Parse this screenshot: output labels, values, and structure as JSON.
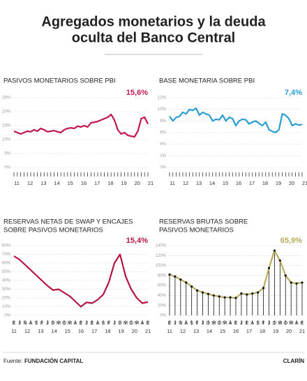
{
  "header": {
    "title": [
      "Agregados monetarios y la deuda",
      "oculta del Banco Central"
    ]
  },
  "footer": {
    "source_label": "Fuente:",
    "source": "FUNDACIÓN CAPITAL",
    "brand": "CLARÍN"
  },
  "chart_data": [
    {
      "type": "line",
      "title": "PASIVOS MONETARIOS SOBRE PBI",
      "color": "#c2174b",
      "categories": [
        "11",
        null,
        null,
        null,
        "12",
        null,
        null,
        null,
        "13",
        null,
        null,
        null,
        "14",
        null,
        null,
        null,
        "15",
        null,
        null,
        null,
        "16",
        null,
        null,
        null,
        "17",
        null,
        null,
        null,
        "18",
        null,
        null,
        null,
        "19",
        null,
        null,
        null,
        "20",
        null,
        null,
        null,
        "21"
      ],
      "values": [
        13,
        12.5,
        12,
        12.5,
        13,
        12.8,
        13.5,
        13,
        14,
        13.5,
        12.8,
        13,
        13.2,
        12.8,
        12.5,
        13.5,
        14,
        14.2,
        14,
        14.8,
        14.5,
        15,
        14.5,
        16,
        16.2,
        16.5,
        17,
        17.5,
        18,
        19,
        17,
        13.5,
        12,
        12.5,
        11.5,
        11.2,
        11,
        13,
        17.5,
        18,
        15.6
      ],
      "value_labels": {
        "40": "15,6%"
      },
      "ylim": [
        0,
        25
      ],
      "yticks": [
        {
          "value": 0,
          "label": "0%"
        },
        {
          "value": 5,
          "label": "5%"
        },
        {
          "value": 10,
          "label": "10%"
        },
        {
          "value": 15,
          "label": "15%"
        },
        {
          "value": 20,
          "label": "20%"
        },
        {
          "value": 25,
          "label": "25%"
        }
      ],
      "grid": true
    },
    {
      "type": "line",
      "title": "BASE MONETARIA SOBRE PBI",
      "color": "#2a9dd1",
      "categories": [
        "11",
        null,
        null,
        null,
        "12",
        null,
        null,
        null,
        "13",
        null,
        null,
        null,
        "14",
        null,
        null,
        null,
        "15",
        null,
        null,
        null,
        "16",
        null,
        null,
        null,
        "17",
        null,
        null,
        null,
        "18",
        null,
        null,
        null,
        "19",
        null,
        null,
        null,
        "20",
        null,
        null,
        null,
        "21"
      ],
      "values": [
        8.8,
        8,
        8.6,
        8.8,
        9.5,
        9.2,
        10,
        9.8,
        10.2,
        9,
        9.5,
        9.2,
        9,
        8,
        8.3,
        8.2,
        9,
        8,
        8.6,
        8.4,
        7.2,
        8,
        8.3,
        8.2,
        7.5,
        7.8,
        8,
        7.6,
        7.2,
        7.8,
        6.5,
        6.2,
        6,
        6.5,
        9.2,
        9,
        8.4,
        7.2,
        7.5,
        7.3,
        7.4
      ],
      "value_labels": {
        "40": "7,4%"
      },
      "ylim": [
        0,
        12
      ],
      "yticks": [
        {
          "value": 0,
          "label": "0%"
        },
        {
          "value": 2,
          "label": "2%"
        },
        {
          "value": 4,
          "label": "4%"
        },
        {
          "value": 6,
          "label": "6%"
        },
        {
          "value": 8,
          "label": "8%"
        },
        {
          "value": 10,
          "label": "10%"
        },
        {
          "value": 12,
          "label": "12%"
        }
      ],
      "grid": true
    },
    {
      "type": "line",
      "title": [
        "RESERVAS NETAS DE SWAP Y ENCAJES",
        "SOBRE PASIVOS MONETARIOS"
      ],
      "color": "#b5123f",
      "categories": [
        "E",
        "J",
        "N",
        "A",
        "S",
        "F",
        "J",
        "D",
        "M",
        "O",
        "M",
        "A",
        "E",
        "J",
        "E",
        "A",
        "S",
        "F",
        "J",
        "D",
        "M",
        "O",
        "M",
        "A",
        "E"
      ],
      "x_groups": [
        "11",
        "12",
        "13",
        "14",
        "15",
        "16",
        "17",
        "18",
        "19",
        "20",
        "21"
      ],
      "values": [
        68,
        64,
        58,
        52,
        46,
        40,
        34,
        29,
        30,
        26,
        22,
        16,
        10,
        15,
        14,
        18,
        24,
        38,
        60,
        70,
        45,
        30,
        20,
        14,
        15.4
      ],
      "value_labels": {
        "24": "15,4%"
      },
      "ylim": [
        0,
        80
      ],
      "yticks": [
        {
          "value": 0,
          "label": "0%"
        },
        {
          "value": 10,
          "label": "10%"
        },
        {
          "value": 20,
          "label": "20%"
        },
        {
          "value": 30,
          "label": "30%"
        },
        {
          "value": 40,
          "label": "40%"
        },
        {
          "value": 50,
          "label": "50%"
        },
        {
          "value": 60,
          "label": "60%"
        },
        {
          "value": 70,
          "label": "70%"
        },
        {
          "value": 80,
          "label": "80%"
        }
      ],
      "grid": true
    },
    {
      "type": "stem-line",
      "title": [
        "RESERVAS BRUTAS SOBRE",
        "PASIVOS MONETARIOS"
      ],
      "color": "#b8ab5a",
      "marker_color": "#111111",
      "categories": [
        "E",
        "J",
        "N",
        "A",
        "S",
        "F",
        "J",
        "D",
        "M",
        "O",
        "M",
        "A",
        "E",
        "J",
        "E",
        "A",
        "S",
        "F",
        "J",
        "D",
        "M",
        "O",
        "M",
        "A",
        "E"
      ],
      "x_groups": [
        "11",
        "12",
        "13",
        "14",
        "15",
        "16",
        "17",
        "18",
        "19",
        "20",
        "21"
      ],
      "values": [
        82,
        78,
        72,
        66,
        58,
        50,
        46,
        43,
        40,
        38,
        36,
        36,
        35,
        44,
        42,
        44,
        46,
        55,
        95,
        130,
        110,
        80,
        66,
        64,
        65.9
      ],
      "value_labels": {
        "24": "65,9%"
      },
      "ylim": [
        0,
        140
      ],
      "yticks": [
        {
          "value": 0,
          "label": "0%"
        },
        {
          "value": 20,
          "label": "20%"
        },
        {
          "value": 40,
          "label": "40%"
        },
        {
          "value": 60,
          "label": "60%"
        },
        {
          "value": 80,
          "label": "80%"
        },
        {
          "value": 100,
          "label": "100%"
        },
        {
          "value": 120,
          "label": "120%"
        },
        {
          "value": 140,
          "label": "140%"
        }
      ],
      "grid": true
    }
  ]
}
